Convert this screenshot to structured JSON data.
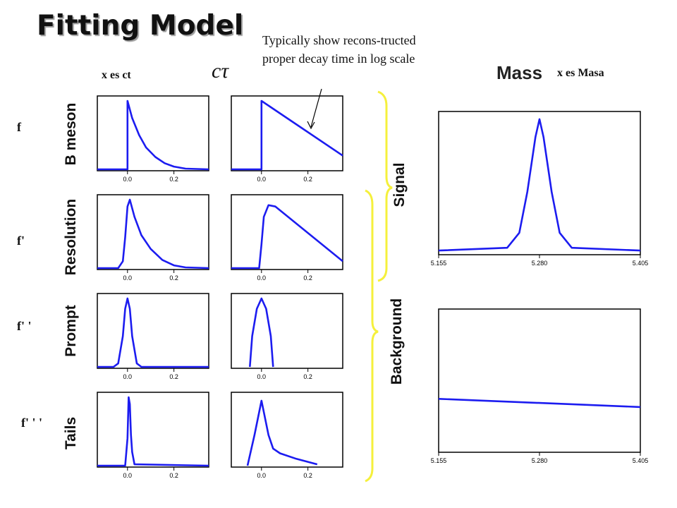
{
  "title": "Fitting Model",
  "annotation": {
    "line1": "Typically show  recons-tructed",
    "line2": "proper decay time in log scale"
  },
  "header": {
    "x_ct": "x es  ct",
    "ctau": "cτ",
    "mass": "Mass",
    "x_masa": "x es  Masa"
  },
  "row_factors": [
    "f",
    "f'",
    "f' '",
    "f' ' '"
  ],
  "components": {
    "b_meson": "B meson",
    "resolution": "Resolution",
    "prompt": "Prompt",
    "tails": "Tails",
    "signal": "Signal",
    "background": "Background"
  },
  "colors": {
    "curve": "#1c1cf0",
    "brace": "#f5f03c",
    "axis": "#000000"
  },
  "chart_data": [
    {
      "type": "line",
      "name": "ct B meson",
      "xlim": [
        -0.13,
        0.35
      ],
      "xticks": [
        "0.0",
        "0.2"
      ],
      "x": [
        -0.13,
        0.0,
        0.0,
        0.02,
        0.05,
        0.08,
        0.12,
        0.16,
        0.2,
        0.25,
        0.35
      ],
      "y": [
        0,
        0,
        1.0,
        0.75,
        0.5,
        0.32,
        0.18,
        0.09,
        0.04,
        0.01,
        0
      ]
    },
    {
      "type": "line",
      "name": "log ct B meson",
      "xlim": [
        -0.13,
        0.35
      ],
      "xticks": [
        "0.0",
        "0.2"
      ],
      "x": [
        -0.13,
        0.0,
        0.0,
        0.35
      ],
      "y": [
        0,
        0,
        1.0,
        0.2
      ]
    },
    {
      "type": "line",
      "name": "ct Resolution",
      "xlim": [
        -0.13,
        0.35
      ],
      "xticks": [
        "0.0",
        "0.2"
      ],
      "x": [
        -0.13,
        -0.04,
        -0.02,
        -0.01,
        0.0,
        0.01,
        0.03,
        0.06,
        0.1,
        0.15,
        0.2,
        0.25,
        0.35
      ],
      "y": [
        0,
        0,
        0.1,
        0.45,
        0.9,
        1.0,
        0.75,
        0.48,
        0.28,
        0.12,
        0.04,
        0.01,
        0
      ]
    },
    {
      "type": "line",
      "name": "log ct Resolution",
      "xlim": [
        -0.13,
        0.35
      ],
      "xticks": [
        "0.0",
        "0.2"
      ],
      "x": [
        -0.13,
        -0.01,
        0.0,
        0.01,
        0.03,
        0.06,
        0.35
      ],
      "y": [
        0,
        0,
        0.35,
        0.75,
        0.92,
        0.9,
        0.1
      ]
    },
    {
      "type": "line",
      "name": "ct Prompt",
      "xlim": [
        -0.13,
        0.35
      ],
      "xticks": [
        "0.0",
        "0.2"
      ],
      "x": [
        -0.13,
        -0.06,
        -0.04,
        -0.02,
        -0.01,
        0.0,
        0.01,
        0.02,
        0.04,
        0.06,
        0.35
      ],
      "y": [
        0,
        0,
        0.05,
        0.45,
        0.85,
        1.0,
        0.85,
        0.45,
        0.05,
        0,
        0
      ]
    },
    {
      "type": "line",
      "name": "log ct Prompt",
      "xlim": [
        -0.13,
        0.35
      ],
      "xticks": [
        "0.0",
        "0.2"
      ],
      "x": [
        -0.05,
        -0.04,
        -0.02,
        0.0,
        0.02,
        0.04,
        0.05
      ],
      "y": [
        0,
        0.45,
        0.85,
        1.0,
        0.85,
        0.45,
        0
      ]
    },
    {
      "type": "line",
      "name": "ct Tails",
      "xlim": [
        -0.13,
        0.35
      ],
      "xticks": [
        "0.0",
        "0.2"
      ],
      "x": [
        -0.13,
        -0.01,
        0.0,
        0.005,
        0.01,
        0.015,
        0.02,
        0.03,
        0.35
      ],
      "y": [
        0,
        0,
        0.4,
        1.0,
        0.9,
        0.45,
        0.2,
        0.02,
        0
      ]
    },
    {
      "type": "line",
      "name": "log ct Tails",
      "xlim": [
        -0.13,
        0.35
      ],
      "xticks": [
        "0.0",
        "0.2"
      ],
      "x": [
        -0.06,
        -0.03,
        0.0,
        0.03,
        0.05,
        0.08,
        0.15,
        0.24
      ],
      "y": [
        0,
        0.45,
        0.95,
        0.45,
        0.25,
        0.18,
        0.1,
        0.02
      ]
    },
    {
      "type": "line",
      "name": "Signal mass",
      "xlim": [
        5.155,
        5.405
      ],
      "xticks": [
        "5.155",
        "5.280",
        "5.405"
      ],
      "x": [
        5.155,
        5.24,
        5.255,
        5.265,
        5.275,
        5.28,
        5.285,
        5.295,
        5.305,
        5.32,
        5.405
      ],
      "y": [
        0.02,
        0.04,
        0.15,
        0.45,
        0.85,
        0.98,
        0.85,
        0.45,
        0.15,
        0.04,
        0.02
      ]
    },
    {
      "type": "line",
      "name": "Background mass",
      "xlim": [
        5.155,
        5.405
      ],
      "xticks": [
        "5.155",
        "5.280",
        "5.405"
      ],
      "x": [
        5.155,
        5.405
      ],
      "y": [
        0.38,
        0.32
      ]
    }
  ]
}
